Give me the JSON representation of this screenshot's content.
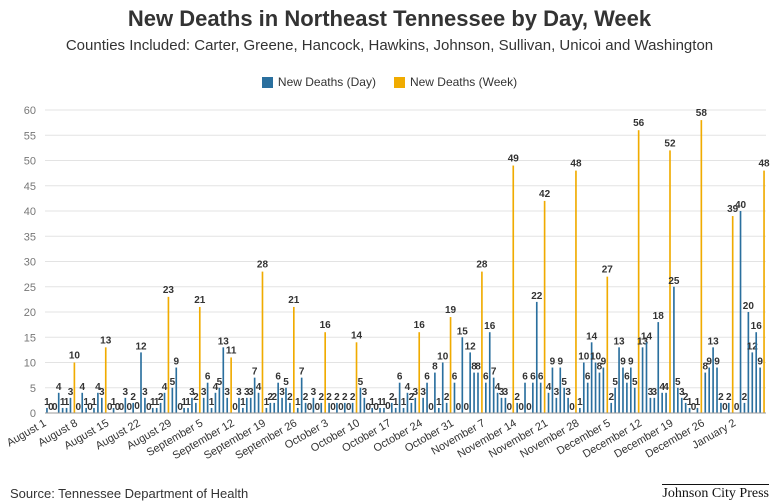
{
  "chart_data": {
    "type": "bar",
    "title": "New Deaths in Northeast Tennessee by Day, Week",
    "subtitle": "Counties Included: Carter, Greene, Hancock, Hawkins, Johnson, Sullivan, Unicoi and Washington",
    "xlabel": "",
    "ylabel": "",
    "ylim": [
      0,
      60
    ],
    "yticks": [
      0,
      5,
      10,
      15,
      20,
      25,
      30,
      35,
      40,
      45,
      50,
      55,
      60
    ],
    "grid": true,
    "legend_position": "top-center",
    "series": [
      {
        "name": "New Deaths (Day)",
        "color": "#2a6f9e"
      },
      {
        "name": "New Deaths (Week)",
        "color": "#f0ab00"
      }
    ],
    "weeks": [
      {
        "label": "August 1",
        "week": 10,
        "daily": [
          1,
          0,
          0,
          4,
          1,
          1,
          3
        ]
      },
      {
        "label": "August 8",
        "week": 13,
        "daily": [
          0,
          4,
          1,
          0,
          1,
          4,
          3
        ]
      },
      {
        "label": "August 15",
        "week": 0,
        "daily": [
          0,
          1,
          0,
          0,
          3,
          0,
          2
        ]
      },
      {
        "label": "August 22",
        "week": 23,
        "daily": [
          12,
          3,
          0,
          1,
          1,
          2,
          4
        ]
      },
      {
        "label": "August 29",
        "week": 21,
        "daily": [
          5,
          9,
          0,
          1,
          1,
          3,
          2
        ]
      },
      {
        "label": "September 5",
        "week": 11,
        "daily": [
          3,
          6,
          1,
          4,
          5,
          13,
          3
        ]
      },
      {
        "label": "September 12",
        "week": 28,
        "daily": [
          0,
          3,
          1,
          3,
          3,
          7,
          4
        ]
      },
      {
        "label": "September 19",
        "week": 21,
        "daily": [
          1,
          2,
          2,
          6,
          3,
          5,
          2
        ]
      },
      {
        "label": "September 26",
        "week": 16,
        "daily": [
          1,
          7,
          2,
          0,
          3,
          0,
          2
        ]
      },
      {
        "label": "October 3",
        "week": 14,
        "daily": [
          2,
          0,
          2,
          0,
          2,
          0,
          2
        ]
      },
      {
        "label": "October 10",
        "week": 0,
        "daily": [
          5,
          3,
          0,
          1,
          0,
          1,
          1
        ]
      },
      {
        "label": "October 17",
        "week": 16,
        "daily": [
          2,
          1,
          6,
          1,
          4,
          2,
          3
        ]
      },
      {
        "label": "October 24",
        "week": 19,
        "daily": [
          3,
          6,
          0,
          8,
          1,
          10,
          2
        ]
      },
      {
        "label": "October 31",
        "week": 28,
        "daily": [
          6,
          0,
          15,
          0,
          12,
          8,
          8
        ]
      },
      {
        "label": "November 7",
        "week": 49,
        "daily": [
          6,
          16,
          7,
          4,
          3,
          3,
          0
        ]
      },
      {
        "label": "November 14",
        "week": 42,
        "daily": [
          2,
          0,
          6,
          0,
          6,
          22,
          6
        ]
      },
      {
        "label": "November 21",
        "week": 48,
        "daily": [
          4,
          9,
          3,
          9,
          5,
          3,
          0
        ]
      },
      {
        "label": "November 28",
        "week": 27,
        "daily": [
          1,
          10,
          6,
          14,
          10,
          8,
          9
        ]
      },
      {
        "label": "December 5",
        "week": 56,
        "daily": [
          2,
          5,
          13,
          9,
          6,
          9,
          5
        ]
      },
      {
        "label": "December 12",
        "week": 52,
        "daily": [
          13,
          14,
          3,
          3,
          18,
          4,
          4
        ]
      },
      {
        "label": "December 19",
        "week": 58,
        "daily": [
          25,
          5,
          3,
          2,
          1,
          0,
          1
        ]
      },
      {
        "label": "December 26",
        "week": 39,
        "daily": [
          8,
          9,
          13,
          9,
          2,
          0,
          2
        ]
      },
      {
        "label": "January 2",
        "week": 48,
        "daily": [
          0,
          40,
          2,
          20,
          12,
          16,
          9
        ]
      }
    ]
  },
  "legend": {
    "day_label": "New Deaths (Day)",
    "week_label": "New Deaths (Week)"
  },
  "footer": {
    "source": "Source: Tennessee Department of Health",
    "brand": "Johnson City Press"
  }
}
